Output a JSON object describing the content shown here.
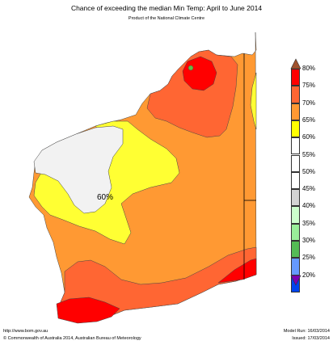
{
  "header": {
    "title": "Chance of exceeding the median Min Temp: April to June 2014",
    "subtitle": "Product of the National Climate Centre"
  },
  "map": {
    "region_label": "60%",
    "region_colors": {
      "sea": "#ffffff",
      "band_45_55": "#f2f2f2",
      "band_60_65": "#ffff33",
      "band_65_70": "#ff9933",
      "band_70_75": "#ff6633",
      "band_75_80": "#ff0000"
    }
  },
  "legend": {
    "top_arrow_color": "#a0522d",
    "bottom_arrow_color": "#7b00b4",
    "items": [
      {
        "label": "80%",
        "color": "#ff0000"
      },
      {
        "label": "75%",
        "color": "#ff6633"
      },
      {
        "label": "70%",
        "color": "#ff9933"
      },
      {
        "label": "65%",
        "color": "#ffff00"
      },
      {
        "label": "60%",
        "color": "#ffffff"
      },
      {
        "label": "55%",
        "color": "#ffffff"
      },
      {
        "label": "50%",
        "color": "#ffffff"
      },
      {
        "label": "45%",
        "color": "#d3d3d3"
      },
      {
        "label": "40%",
        "color": "#ccffcc"
      },
      {
        "label": "35%",
        "color": "#99ee99"
      },
      {
        "label": "30%",
        "color": "#55bb55"
      },
      {
        "label": "25%",
        "color": "#6699ff"
      },
      {
        "label": "20%",
        "color": "#0044ee"
      }
    ]
  },
  "footer": {
    "url": "http://www.bom.gov.au",
    "copyright": "©  Commonwealth of Australia 2014, Australian Bureau of Meteorology",
    "model_run": "Model Run: 16/03/2014",
    "issued": "Issued: 17/03/2014"
  }
}
